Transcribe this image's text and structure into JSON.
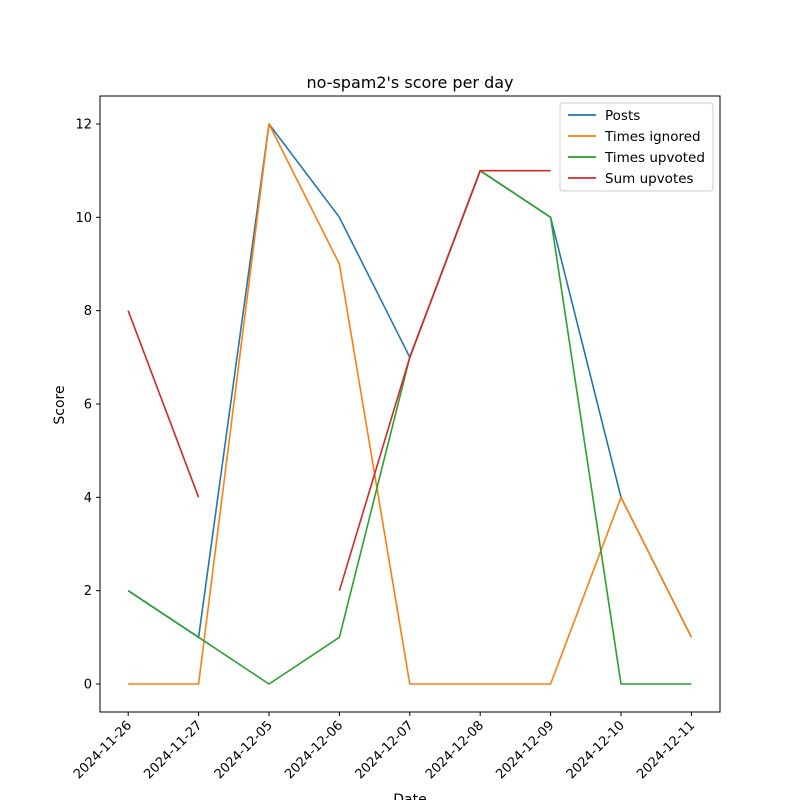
{
  "chart_data": {
    "type": "line",
    "title": "no-spam2's score per day",
    "xlabel": "Date",
    "ylabel": "Score",
    "categories": [
      "2024-11-26",
      "2024-11-27",
      "2024-12-05",
      "2024-12-06",
      "2024-12-07",
      "2024-12-08",
      "2024-12-09",
      "2024-12-10",
      "2024-12-11"
    ],
    "ylim": [
      -0.6,
      12.6
    ],
    "yticks": [
      0,
      2,
      4,
      6,
      8,
      10,
      12
    ],
    "legend": "top-right",
    "grid": false,
    "series": [
      {
        "name": "Posts",
        "color": "#1f77b4",
        "values": [
          2,
          1,
          12,
          10,
          7,
          11,
          10,
          4,
          1
        ]
      },
      {
        "name": "Times ignored",
        "color": "#ff7f0e",
        "values": [
          0,
          0,
          12,
          9,
          0,
          0,
          0,
          4,
          1
        ]
      },
      {
        "name": "Times upvoted",
        "color": "#2ca02c",
        "values": [
          2,
          1,
          0,
          1,
          7,
          11,
          10,
          0,
          0
        ]
      },
      {
        "name": "Sum upvotes",
        "color": "#d62728",
        "values": [
          8,
          4,
          null,
          2,
          7,
          11,
          11,
          null,
          null
        ]
      }
    ]
  }
}
